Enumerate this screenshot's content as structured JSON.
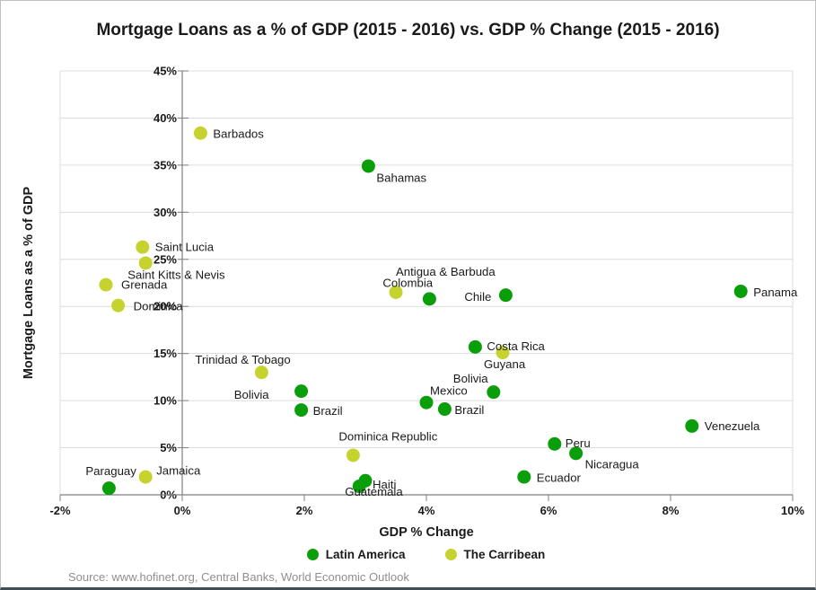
{
  "chart_data": {
    "type": "scatter",
    "title": "Mortgage Loans as a % of GDP (2015 - 2016) vs. GDP % Change (2015 - 2016)",
    "xlabel": "GDP % Change",
    "ylabel": "Mortgage Loans as a  % of GDP",
    "xlim": [
      -2,
      10
    ],
    "ylim": [
      0,
      45
    ],
    "grid": "horizontal-only",
    "x_ticks": [
      {
        "v": -2,
        "label": "-2%"
      },
      {
        "v": 0,
        "label": "0%"
      },
      {
        "v": 2,
        "label": "2%"
      },
      {
        "v": 4,
        "label": "4%"
      },
      {
        "v": 6,
        "label": "6%"
      },
      {
        "v": 8,
        "label": "8%"
      },
      {
        "v": 10,
        "label": "10%"
      }
    ],
    "y_ticks": [
      {
        "v": 0,
        "label": "0%"
      },
      {
        "v": 5,
        "label": "5%"
      },
      {
        "v": 10,
        "label": "10%"
      },
      {
        "v": 15,
        "label": "15%"
      },
      {
        "v": 20,
        "label": "20%"
      },
      {
        "v": 25,
        "label": "25%"
      },
      {
        "v": 30,
        "label": "30%"
      },
      {
        "v": 35,
        "label": "35%"
      },
      {
        "v": 40,
        "label": "40%"
      },
      {
        "v": 45,
        "label": "45%"
      }
    ],
    "legend": {
      "position": "bottom",
      "entries": [
        {
          "name": "Latin America",
          "color": "#0a9e0a"
        },
        {
          "name": "The Carribean",
          "color": "#c6d32f"
        }
      ]
    },
    "series": [
      {
        "name": "Latin America",
        "color": "#0a9e0a",
        "points": [
          {
            "country": "Bahamas",
            "x": 3.05,
            "y": 34.9,
            "anchor": "start",
            "dx": 9,
            "dy": 13
          },
          {
            "country": "Colombia",
            "x": 4.05,
            "y": 20.8,
            "anchor": "start",
            "dx": -52,
            "dy": -18
          },
          {
            "country": "Chile",
            "x": 5.3,
            "y": 21.2,
            "anchor": "end",
            "dx": -16,
            "dy": 2
          },
          {
            "country": "Panama",
            "x": 9.15,
            "y": 21.6,
            "anchor": "start",
            "dx": 14,
            "dy": 1
          },
          {
            "country": "Costa Rica",
            "x": 4.8,
            "y": 15.7,
            "anchor": "start",
            "dx": 13,
            "dy": -1
          },
          {
            "country": "Bolivia",
            "x": 1.95,
            "y": 11.0,
            "anchor": "end",
            "dx": -36,
            "dy": 4
          },
          {
            "country": "Brazil",
            "x": 1.95,
            "y": 9.0,
            "anchor": "start",
            "dx": 13,
            "dy": 1
          },
          {
            "country": "Bolivia",
            "x": 5.1,
            "y": 10.9,
            "anchor": "start",
            "dx": -45,
            "dy": -15
          },
          {
            "country": "Mexico",
            "x": 4.0,
            "y": 9.8,
            "anchor": "start",
            "dx": 4,
            "dy": -13
          },
          {
            "country": "Brazil",
            "x": 4.3,
            "y": 9.1,
            "anchor": "start",
            "dx": 11,
            "dy": 1
          },
          {
            "country": "Venezuela",
            "x": 8.35,
            "y": 7.3,
            "anchor": "start",
            "dx": 14,
            "dy": 0
          },
          {
            "country": "Peru",
            "x": 6.1,
            "y": 5.4,
            "anchor": "start",
            "dx": 12,
            "dy": -1
          },
          {
            "country": "Nicaragua",
            "x": 6.45,
            "y": 4.4,
            "anchor": "start",
            "dx": 10,
            "dy": 12
          },
          {
            "country": "Ecuador",
            "x": 5.6,
            "y": 1.9,
            "anchor": "start",
            "dx": 14,
            "dy": 1
          },
          {
            "country": "Paraguay",
            "x": -1.2,
            "y": 0.7,
            "anchor": "start",
            "dx": -26,
            "dy": -19
          },
          {
            "country": "Haiti",
            "x": 3.0,
            "y": 1.5,
            "anchor": "start",
            "dx": 8,
            "dy": 4
          },
          {
            "country": "Guatemala",
            "x": 2.9,
            "y": 0.9,
            "anchor": "start",
            "dx": -16,
            "dy": 6
          }
        ]
      },
      {
        "name": "The Carribean",
        "color": "#c6d32f",
        "points": [
          {
            "country": "Barbados",
            "x": 0.3,
            "y": 38.4,
            "anchor": "start",
            "dx": 14,
            "dy": 1
          },
          {
            "country": "Saint Lucia",
            "x": -0.65,
            "y": 26.3,
            "anchor": "start",
            "dx": 14,
            "dy": 0
          },
          {
            "country": "Saint Kitts & Nevis",
            "x": -0.6,
            "y": 24.6,
            "anchor": "start",
            "dx": -20,
            "dy": 13
          },
          {
            "country": "Grenada",
            "x": -1.25,
            "y": 22.3,
            "anchor": "start",
            "dx": 17,
            "dy": 0
          },
          {
            "country": "Dominica",
            "x": -1.05,
            "y": 20.1,
            "anchor": "start",
            "dx": 17,
            "dy": 1
          },
          {
            "country": "Jamaica",
            "x": -0.6,
            "y": 1.9,
            "anchor": "start",
            "dx": 12,
            "dy": -7
          },
          {
            "country": "Trinidad & Tobago",
            "x": 1.3,
            "y": 13.0,
            "anchor": "start",
            "dx": -74,
            "dy": -14
          },
          {
            "country": "Antigua & Barbuda",
            "x": 3.5,
            "y": 21.5,
            "anchor": "start",
            "dx": 0,
            "dy": -23
          },
          {
            "country": "Guyana",
            "x": 5.25,
            "y": 15.1,
            "anchor": "start",
            "dx": -21,
            "dy": 13
          },
          {
            "country": "Dominica Republic",
            "x": 2.8,
            "y": 4.2,
            "anchor": "start",
            "dx": -16,
            "dy": -21
          }
        ]
      }
    ]
  },
  "footer": {
    "source": "Source: www.hofinet.org,  Central Banks, World Economic Outlook"
  }
}
